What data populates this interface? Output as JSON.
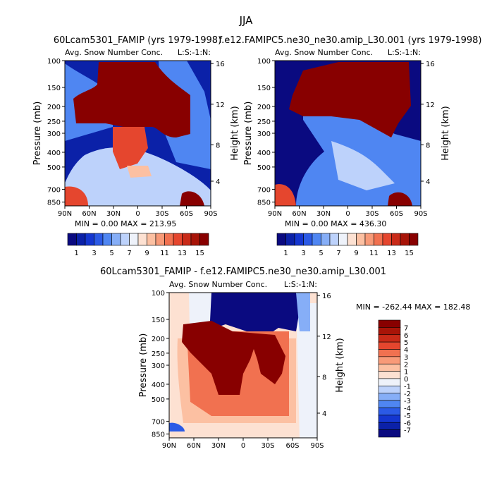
{
  "figure": {
    "season": "JJA"
  },
  "colors": {
    "levels16": [
      "#0a0a80",
      "#0b21a8",
      "#1436d0",
      "#2b5ae6",
      "#4f86f2",
      "#86aef7",
      "#bdd2fb",
      "#eef2fa",
      "#fde1d2",
      "#fcc0a2",
      "#f89a78",
      "#f17150",
      "#e5462e",
      "#c92a18",
      "#a81408",
      "#880000"
    ],
    "levels_diff": [
      "#0a0a80",
      "#0b21a8",
      "#1436d0",
      "#2b5ae6",
      "#4f86f2",
      "#86aef7",
      "#bdd2fb",
      "#eef2fa",
      "#fde1d2",
      "#fcc0a2",
      "#f89a78",
      "#f17150",
      "#e5462e",
      "#c92a18",
      "#a81408",
      "#880000"
    ]
  },
  "panels": [
    {
      "title": "60Lcam5301_FAMIP (yrs 1979-1998)",
      "subtitle_left": "Avg. Snow Number Conc.",
      "subtitle_right": "L:S:-1:N:",
      "min_label": "MIN =    0.00  MAX = 213.95"
    },
    {
      "title": "f.e12.FAMIPC5.ne30_ne30.amip_L30.001 (yrs 1979-1998)",
      "subtitle_left": "Avg. Snow Number Conc.",
      "subtitle_right": "L:S:-1:N:",
      "min_label": "MIN =    0.00  MAX = 436.30"
    },
    {
      "title": "60Lcam5301_FAMIP - f.e12.FAMIPC5.ne30_ne30.amip_L30.001",
      "subtitle_left": "Avg. Snow Number Conc.",
      "subtitle_right": "L:S:-1:N:",
      "min_label": "MIN = -262.44   MAX = 182.48"
    }
  ],
  "axes": {
    "ylabel_left": "Pressure (mb)",
    "ylabel_right": "Height (km)",
    "pressure_ticks": [
      "100",
      "150",
      "200",
      "250",
      "300",
      "400",
      "500",
      "700",
      "850"
    ],
    "height_ticks": [
      "16",
      "12",
      "8",
      "4"
    ],
    "lat_ticks": [
      "90N",
      "60N",
      "30N",
      "0",
      "30S",
      "60S",
      "90S"
    ]
  },
  "colorbars": {
    "top_labels": [
      "1",
      "3",
      "5",
      "7",
      "9",
      "11",
      "13",
      "15"
    ],
    "diff_labels": [
      "7",
      "6",
      "5",
      "4",
      "3",
      "2",
      "1",
      "0",
      "-1",
      "-2",
      "-3",
      "-4",
      "-5",
      "-6",
      "-7"
    ]
  },
  "chart_data": [
    {
      "type": "heatmap",
      "title": "60Lcam5301_FAMIP (yrs 1979-1998)",
      "xlabel": "",
      "ylabel": "Pressure (mb)",
      "x": [
        "90N",
        "60N",
        "30N",
        "0",
        "30S",
        "60S",
        "90S"
      ],
      "y_pressure": [
        100,
        150,
        200,
        250,
        300,
        400,
        500,
        700,
        850
      ],
      "min": 0.0,
      "max": 213.95,
      "levels": [
        1,
        2,
        3,
        4,
        5,
        6,
        7,
        8,
        9,
        10,
        11,
        12,
        13,
        14,
        15
      ]
    },
    {
      "type": "heatmap",
      "title": "f.e12.FAMIPC5.ne30_ne30.amip_L30.001 (yrs 1979-1998)",
      "xlabel": "",
      "ylabel": "Pressure (mb)",
      "x": [
        "90N",
        "60N",
        "30N",
        "0",
        "30S",
        "60S",
        "90S"
      ],
      "y_pressure": [
        100,
        150,
        200,
        250,
        300,
        400,
        500,
        700,
        850
      ],
      "min": 0.0,
      "max": 436.3,
      "levels": [
        1,
        2,
        3,
        4,
        5,
        6,
        7,
        8,
        9,
        10,
        11,
        12,
        13,
        14,
        15
      ]
    },
    {
      "type": "heatmap",
      "title": "60Lcam5301_FAMIP - f.e12.FAMIPC5.ne30_ne30.amip_L30.001",
      "xlabel": "",
      "ylabel": "Pressure (mb)",
      "x": [
        "90N",
        "60N",
        "30N",
        "0",
        "30S",
        "60S",
        "90S"
      ],
      "y_pressure": [
        100,
        150,
        200,
        250,
        300,
        400,
        500,
        700,
        850
      ],
      "min": -262.44,
      "max": 182.48,
      "levels": [
        -7,
        -6,
        -5,
        -4,
        -3,
        -2,
        -1,
        0,
        1,
        2,
        3,
        4,
        5,
        6,
        7
      ]
    }
  ]
}
